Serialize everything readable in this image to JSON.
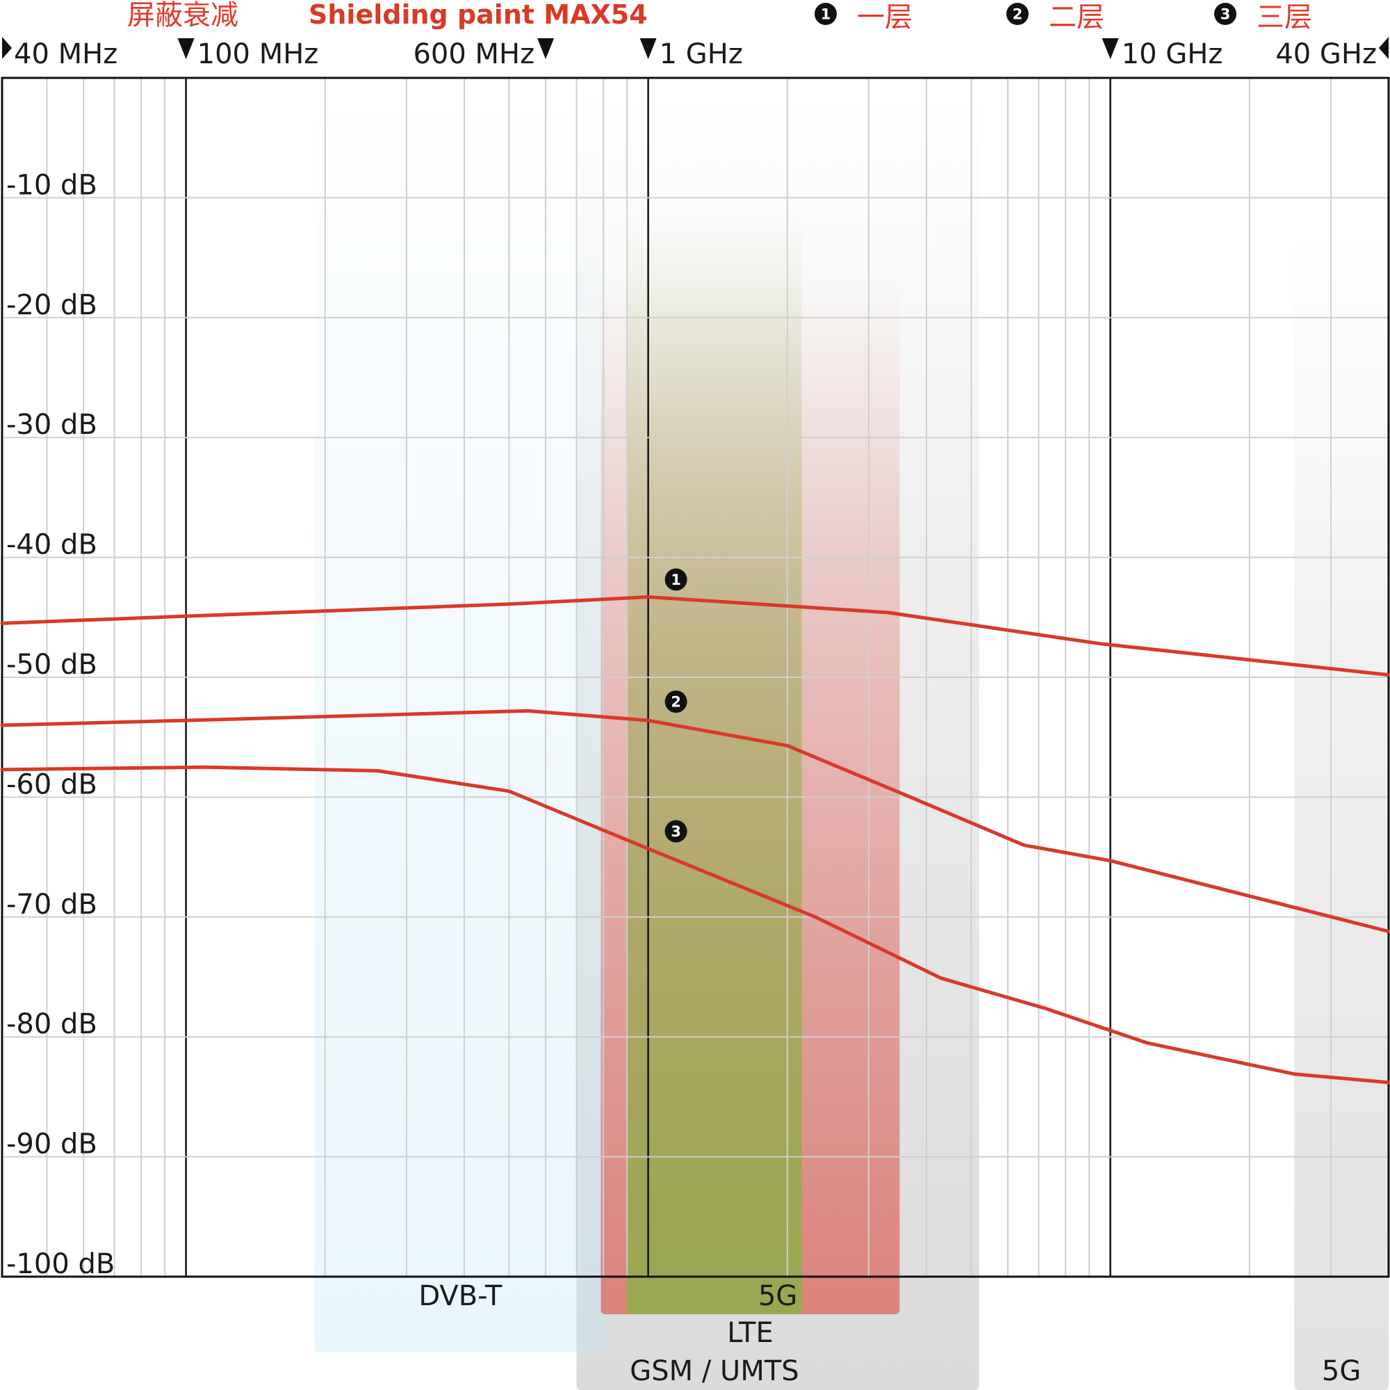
{
  "chart_data": {
    "type": "line",
    "title": "Shielding paint MAX54",
    "subtitle_cn": "屏蔽衰减",
    "x_scale": "log",
    "x_range_hz": [
      40000000,
      40000000000
    ],
    "ylim": [
      -100,
      0
    ],
    "grid": true,
    "top_ticks": [
      {
        "label": "40 MHz",
        "hz": 40000000,
        "marker": "right-arrow"
      },
      {
        "label": "100 MHz",
        "hz": 100000000,
        "marker": "down-arrow"
      },
      {
        "label": "600 MHz",
        "hz": 600000000,
        "marker": "down-arrow"
      },
      {
        "label": "1 GHz",
        "hz": 1000000000,
        "marker": "down-arrow"
      },
      {
        "label": "10 GHz",
        "hz": 10000000000,
        "marker": "down-arrow"
      },
      {
        "label": "40 GHz",
        "hz": 40000000000,
        "marker": "left-arrow"
      }
    ],
    "y_ticks": [
      {
        "label": "-10 dB",
        "value": -10
      },
      {
        "label": "-20 dB",
        "value": -20
      },
      {
        "label": "-30 dB",
        "value": -30
      },
      {
        "label": "-40 dB",
        "value": -40
      },
      {
        "label": "-50 dB",
        "value": -50
      },
      {
        "label": "-60 dB",
        "value": -60
      },
      {
        "label": "-70 dB",
        "value": -70
      },
      {
        "label": "-80 dB",
        "value": -80
      },
      {
        "label": "-90 dB",
        "value": -90
      },
      {
        "label": "-100 dB",
        "value": -100
      }
    ],
    "legend": [
      {
        "number": "1",
        "label": "一层"
      },
      {
        "number": "2",
        "label": "二层"
      },
      {
        "number": "3",
        "label": "三层"
      }
    ],
    "series_color": "#d9392a",
    "series": [
      {
        "name": "一层",
        "number": "1",
        "points": [
          [
            40000000,
            -45.5
          ],
          [
            100000000,
            -44.9
          ],
          [
            500000000,
            -43.9
          ],
          [
            1000000000,
            -43.3
          ],
          [
            3300000000,
            -44.6
          ],
          [
            9500000000,
            -47.2
          ],
          [
            40000000000,
            -49.8
          ]
        ]
      },
      {
        "name": "二层",
        "number": "2",
        "points": [
          [
            40000000,
            -54
          ],
          [
            100000000,
            -53.6
          ],
          [
            550000000,
            -52.8
          ],
          [
            1000000000,
            -53.6
          ],
          [
            2000000000,
            -55.7
          ],
          [
            3800000000,
            -60.2
          ],
          [
            6500000000,
            -64
          ],
          [
            10000000000,
            -65.3
          ],
          [
            40000000000,
            -71.2
          ]
        ]
      },
      {
        "name": "三层",
        "number": "3",
        "points": [
          [
            40000000,
            -57.7
          ],
          [
            110000000,
            -57.5
          ],
          [
            260000000,
            -57.8
          ],
          [
            500000000,
            -59.5
          ],
          [
            1000000000,
            -64.3
          ],
          [
            2300000000,
            -70
          ],
          [
            4300000000,
            -75.1
          ],
          [
            7200000000,
            -77.6
          ],
          [
            12000000000,
            -80.5
          ],
          [
            25000000000,
            -83.1
          ],
          [
            40000000000,
            -83.8
          ]
        ]
      }
    ],
    "bands": [
      {
        "label": "DVB-T",
        "from_hz": 190000000,
        "to_hz": 810000000,
        "color": "#c2e6f6"
      },
      {
        "label": "GSM / UMTS",
        "from_hz": 900000000,
        "to_hz": 2150000000,
        "color": "#95aa4e"
      },
      {
        "label": "LTE",
        "from_hz": 790000000,
        "to_hz": 3500000000,
        "color": "#d9392a"
      },
      {
        "label": "5G",
        "from_hz": 700000000,
        "to_hz": 5200000000,
        "color": "#bdbdbd"
      },
      {
        "label": "5G",
        "from_hz": 25000000000,
        "to_hz": 40000000000,
        "color": "#bdbdbd"
      }
    ]
  }
}
